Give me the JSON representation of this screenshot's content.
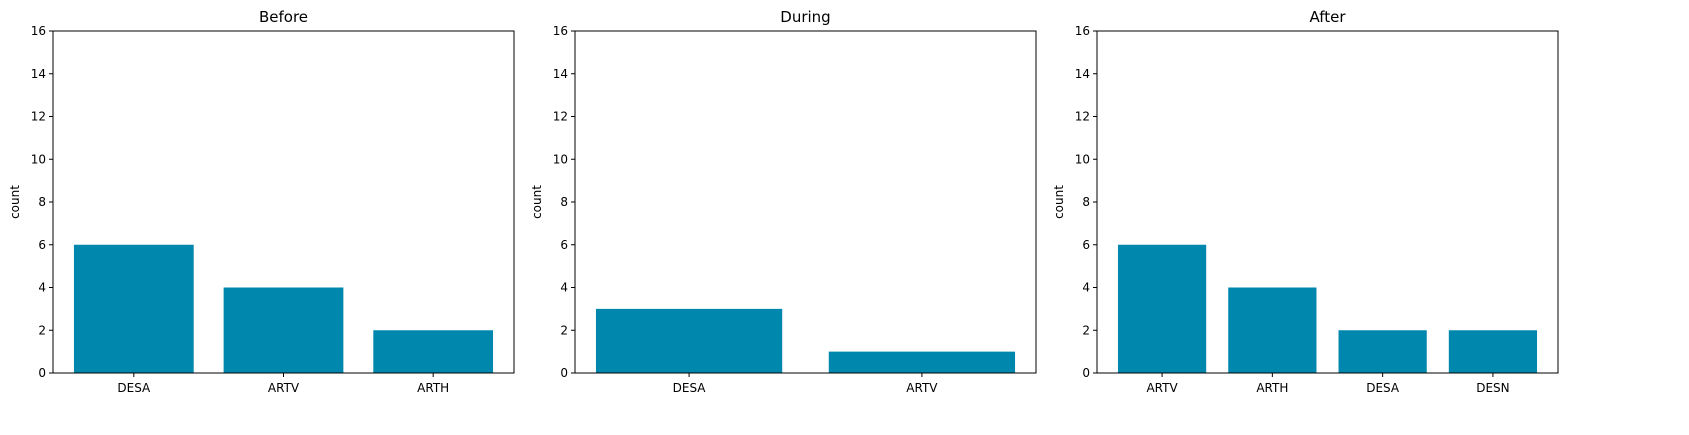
{
  "chart_data": [
    {
      "type": "bar",
      "title": "Before",
      "ylabel": "count",
      "categories": [
        "DESA",
        "ARTV",
        "ARTH"
      ],
      "values": [
        6,
        4,
        2
      ],
      "ylim": [
        0,
        16
      ],
      "yticks": [
        0,
        2,
        4,
        6,
        8,
        10,
        12,
        14,
        16
      ],
      "grid": false,
      "color": "#0087ae"
    },
    {
      "type": "bar",
      "title": "During",
      "ylabel": "count",
      "categories": [
        "DESA",
        "ARTV"
      ],
      "values": [
        3,
        1
      ],
      "ylim": [
        0,
        16
      ],
      "yticks": [
        0,
        2,
        4,
        6,
        8,
        10,
        12,
        14,
        16
      ],
      "grid": false,
      "color": "#0087ae"
    },
    {
      "type": "bar",
      "title": "After",
      "ylabel": "count",
      "categories": [
        "ARTV",
        "ARTH",
        "DESA",
        "DESN"
      ],
      "values": [
        6,
        4,
        2,
        2
      ],
      "ylim": [
        0,
        16
      ],
      "yticks": [
        0,
        2,
        4,
        6,
        8,
        10,
        12,
        14,
        16
      ],
      "grid": false,
      "color": "#0087ae"
    }
  ]
}
